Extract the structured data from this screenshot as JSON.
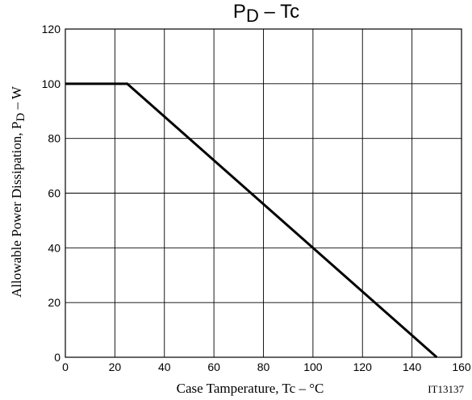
{
  "chart_data": {
    "type": "line",
    "title": "P",
    "title_sub": "D",
    "title_rest": " – Tc",
    "xlabel": "Case Tamperature, Tc  –  °C",
    "ylabel": "Allowable Power Dissipation, P",
    "ylabel_sub": "D",
    "ylabel_rest": "  –  W",
    "xlim": [
      0,
      160
    ],
    "ylim": [
      0,
      120
    ],
    "xticks": [
      0,
      20,
      40,
      60,
      80,
      100,
      120,
      140,
      160
    ],
    "yticks": [
      0,
      20,
      40,
      60,
      80,
      100,
      120
    ],
    "grid": true,
    "series": [
      {
        "x": [
          0,
          25,
          150
        ],
        "y": [
          100,
          100,
          0
        ]
      }
    ],
    "annotation": "IT13137"
  }
}
